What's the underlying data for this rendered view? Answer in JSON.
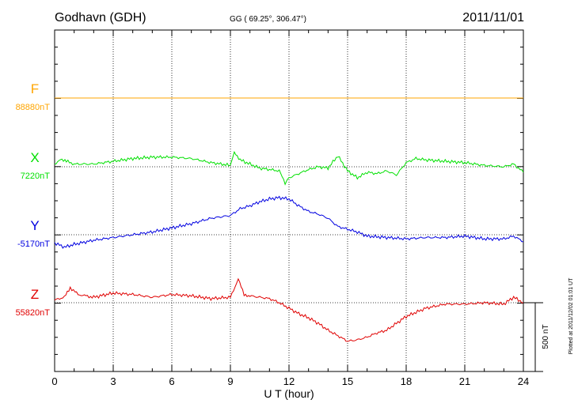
{
  "header": {
    "station": "Godhavn (GDH)",
    "coords": "GG ( 69.25°, 306.47°)",
    "date": "2011/11/01"
  },
  "chart_data": {
    "type": "line",
    "xlabel": "U T (hour)",
    "xlim": [
      0,
      24
    ],
    "x_ticks": [
      "0",
      "3",
      "6",
      "9",
      "12",
      "15",
      "18",
      "21",
      "24"
    ],
    "grid": true,
    "scale_bar": "500 nT",
    "series": [
      {
        "name": "F",
        "baseline": "88880nT",
        "color": "#FFA500",
        "x": [
          0,
          24
        ],
        "y": [
          0,
          0
        ]
      },
      {
        "name": "X",
        "baseline": "7220nT",
        "color": "#00E000",
        "x": [
          0,
          0.3,
          0.6,
          1,
          2,
          3,
          4,
          5,
          6,
          7,
          8,
          9,
          9.2,
          9.5,
          10,
          10.5,
          11,
          11.5,
          11.8,
          12,
          12.5,
          13,
          13.5,
          14,
          14.5,
          15,
          15.5,
          16,
          16.5,
          17,
          17.5,
          18,
          18.5,
          19,
          20,
          21,
          22,
          23,
          23.5,
          24
        ],
        "y": [
          10,
          60,
          40,
          20,
          20,
          40,
          60,
          70,
          70,
          60,
          30,
          10,
          110,
          50,
          20,
          -10,
          -20,
          -30,
          -120,
          -80,
          -50,
          -20,
          0,
          -10,
          80,
          -30,
          -80,
          -40,
          -50,
          -30,
          -60,
          30,
          60,
          50,
          40,
          30,
          10,
          0,
          20,
          -40
        ]
      },
      {
        "name": "Y",
        "baseline": "-5170nT",
        "color": "#0000E0",
        "x": [
          0,
          0.5,
          1,
          2,
          3,
          4,
          5,
          6,
          7,
          8,
          9,
          9.5,
          10,
          10.5,
          11,
          11.5,
          12,
          12.5,
          13,
          13.5,
          14,
          14.5,
          15,
          15.5,
          16,
          17,
          18,
          19,
          20,
          21,
          22,
          23,
          23.5,
          24
        ],
        "y": [
          -60,
          -90,
          -70,
          -40,
          -20,
          0,
          20,
          50,
          80,
          120,
          140,
          190,
          210,
          240,
          260,
          270,
          260,
          210,
          170,
          150,
          120,
          60,
          40,
          20,
          -10,
          -20,
          -30,
          -20,
          -20,
          -10,
          -30,
          -30,
          -10,
          -50
        ]
      },
      {
        "name": "Z",
        "baseline": "55820nT",
        "color": "#E00000",
        "x": [
          0,
          0.5,
          0.8,
          1.2,
          2,
          3,
          4,
          5,
          6,
          7,
          8,
          9,
          9.4,
          9.7,
          10,
          11,
          11.5,
          12,
          12.5,
          13,
          13.5,
          14,
          14.5,
          15,
          15.5,
          16,
          16.5,
          17,
          17.5,
          18,
          19,
          20,
          21,
          22,
          23,
          23.5,
          24
        ],
        "y": [
          20,
          40,
          110,
          60,
          40,
          70,
          60,
          40,
          60,
          50,
          30,
          40,
          170,
          60,
          50,
          30,
          0,
          -40,
          -80,
          -110,
          -150,
          -200,
          -240,
          -280,
          -270,
          -250,
          -220,
          -200,
          -150,
          -100,
          -40,
          -10,
          -10,
          0,
          -10,
          40,
          0
        ]
      }
    ]
  },
  "footer": {
    "plotted": "Plotted at 2011/12/02 01:01  UT"
  }
}
